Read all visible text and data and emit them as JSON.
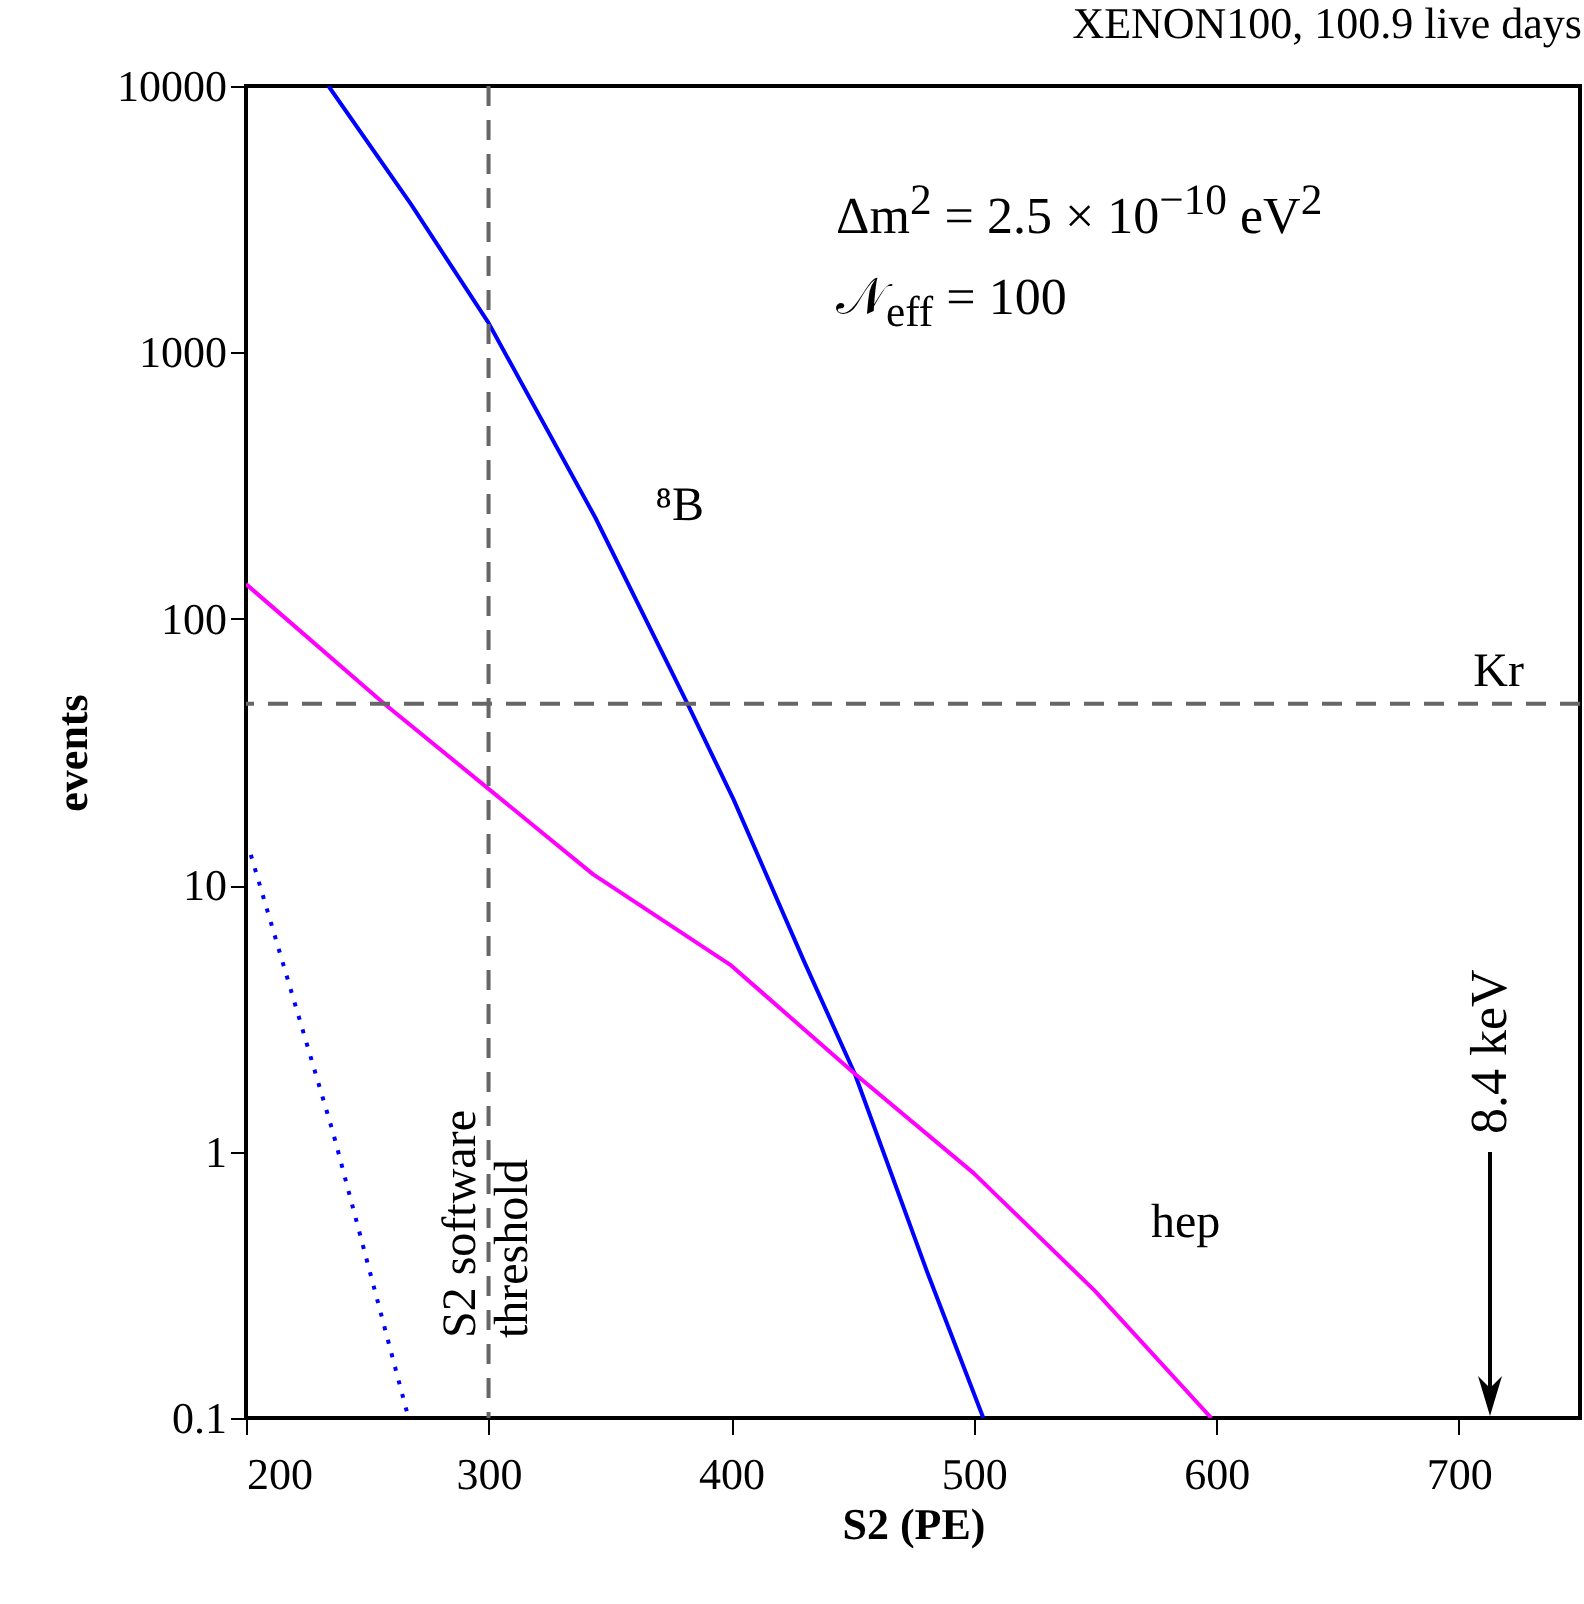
{
  "chart_data": {
    "type": "line",
    "title": "XENON100, 100.9 live days",
    "xlabel": "S2 (PE)",
    "ylabel": "events",
    "series": [
      {
        "name": "⁸B",
        "color": "#0000ff",
        "x": [
          234,
          268,
          300,
          344,
          382,
          401,
          430,
          451,
          481,
          504
        ],
        "values": [
          10000,
          3600,
          1290,
          240,
          48,
          21,
          5.2,
          1.96,
          0.35,
          0.1
        ]
      },
      {
        "name": "hep",
        "color": "#ff00ff",
        "x": [
          200,
          257,
          300,
          343,
          400,
          451,
          500,
          550,
          598
        ],
        "values": [
          135,
          48,
          23,
          11,
          5.0,
          1.96,
          0.83,
          0.3,
          0.1
        ]
      },
      {
        "color": "#0000ff",
        "line_style": "dotted",
        "x": [
          202,
          236,
          267
        ],
        "values": [
          13,
          1.17,
          0.1
        ]
      }
    ],
    "xlim": [
      200,
      750
    ],
    "xticks": [
      200,
      300,
      400,
      500,
      600,
      700
    ],
    "ylim": [
      0.1,
      10000
    ],
    "yticks": [
      0.1,
      1,
      10,
      100,
      1000,
      10000
    ],
    "log": true,
    "grid": false,
    "legend": false,
    "ref_lines": [
      {
        "axis": "x",
        "value": 300,
        "label": "S2 software\nthreshold",
        "color": "#666666",
        "line_style": "dashed"
      },
      {
        "axis": "y",
        "value": 48,
        "label": "Kr",
        "color": "#666666",
        "line_style": "dashed"
      }
    ],
    "annotations": [
      "Δm$^{2}$ = 2.5 × 10$^{−10}$ eV$^{2}$",
      "𝒩$_{eff}$ = 100",
      "8.4 keV"
    ]
  }
}
